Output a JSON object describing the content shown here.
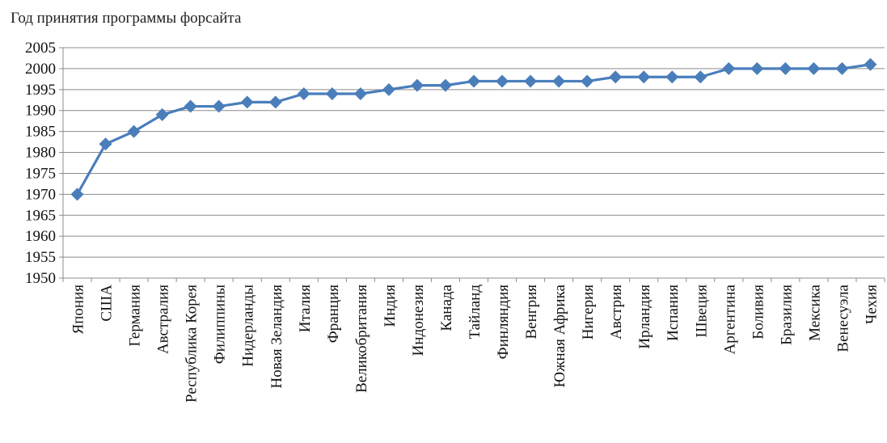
{
  "chart_data": {
    "type": "line",
    "title": "Год принятия программы форсайта",
    "xlabel": "",
    "ylabel": "",
    "categories": [
      "Япония",
      "США",
      "Германия",
      "Австралия",
      "Республика Корея",
      "Филиппины",
      "Нидерланды",
      "Новая Зеландия",
      "Италия",
      "Франция",
      "Великобритания",
      "Индия",
      "Индонезия",
      "Канада",
      "Тайланд",
      "Финляндия",
      "Венгрия",
      "Южная Африка",
      "Нигерия",
      "Австрия",
      "Ирландия",
      "Испания",
      "Швеция",
      "Аргентина",
      "Боливия",
      "Бразилия",
      "Мексика",
      "Венесуэла",
      "Чехия"
    ],
    "series": [
      {
        "values": [
          1970,
          1982,
          1985,
          1989,
          1991,
          1991,
          1992,
          1992,
          1994,
          1994,
          1994,
          1995,
          1996,
          1996,
          1997,
          1997,
          1997,
          1997,
          1997,
          1998,
          1998,
          1998,
          1998,
          2000,
          2000,
          2000,
          2000,
          2000,
          2001
        ],
        "color": "#4a7ebb"
      }
    ],
    "ylim": [
      1950,
      2005
    ],
    "yticks": [
      "1950",
      "1955",
      "1960",
      "1965",
      "1970",
      "1975",
      "1980",
      "1985",
      "1990",
      "1995",
      "2000",
      "2005"
    ],
    "grid": true,
    "legend": "none",
    "gridline_color": "#8c8c8c",
    "axis_color": "#8c8c8c",
    "marker": "diamond"
  }
}
